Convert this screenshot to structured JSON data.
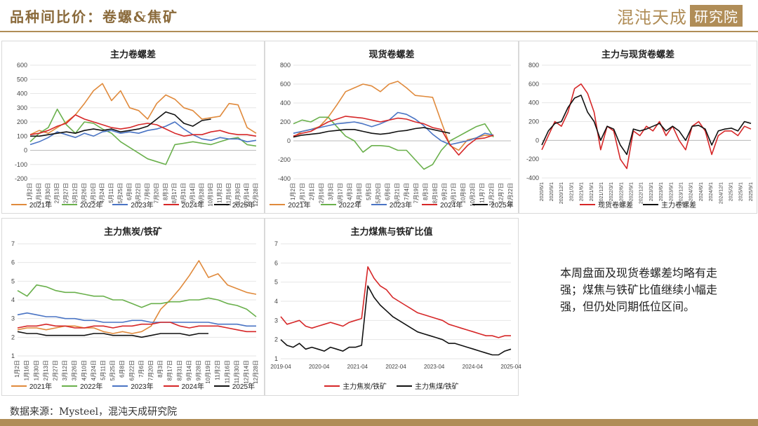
{
  "header": {
    "title": "品种间比价：卷螺&焦矿",
    "logo_text": "混沌天成",
    "logo_box": "研究院"
  },
  "note": "本周盘面及现货卷螺差均略有走强；煤焦与铁矿比值继续小幅走强，但仍处同期低位区间。",
  "source": "数据来源：Mysteel，混沌天成研究院",
  "colors": {
    "brand": "#b08d57",
    "y2021": "#e08a3c",
    "y2022": "#6ab04c",
    "y2023": "#4a74c4",
    "y2024": "#d62728",
    "y2025": "#111111"
  },
  "chart_data": [
    {
      "id": "c1",
      "type": "line",
      "title": "主力卷螺差",
      "y_ticks": [
        600,
        500,
        400,
        300,
        200,
        100,
        0,
        -100,
        -200
      ],
      "ylim": [
        -200,
        600
      ],
      "x_labels": [
        "1月2日",
        "1月16日",
        "1月30日",
        "2月13日",
        "2月27日",
        "3月12日",
        "3月26日",
        "4月10日",
        "4月24日",
        "5月11日",
        "5月25日",
        "6月8日",
        "6月22日",
        "7月6日",
        "7月20日",
        "8月3日",
        "8月17日",
        "8月31日",
        "9月14日",
        "9月28日",
        "10月19日",
        "11月2日",
        "11月16日",
        "11月30日",
        "12月14日",
        "12月28日"
      ],
      "series": [
        {
          "name": "2021年",
          "color": "#e08a3c",
          "values": [
            110,
            140,
            120,
            160,
            200,
            250,
            330,
            420,
            470,
            350,
            420,
            300,
            280,
            220,
            330,
            390,
            360,
            300,
            280,
            220,
            230,
            240,
            330,
            320,
            160,
            120
          ]
        },
        {
          "name": "2022年",
          "color": "#6ab04c",
          "values": [
            60,
            120,
            160,
            290,
            180,
            120,
            200,
            190,
            150,
            120,
            60,
            20,
            -20,
            -60,
            -80,
            -100,
            40,
            50,
            60,
            50,
            40,
            60,
            80,
            90,
            40,
            30
          ]
        },
        {
          "name": "2023年",
          "color": "#4a74c4",
          "values": [
            40,
            60,
            90,
            130,
            110,
            90,
            120,
            100,
            130,
            140,
            120,
            130,
            120,
            140,
            150,
            170,
            200,
            150,
            110,
            80,
            70,
            90,
            80,
            80,
            60,
            70
          ]
        },
        {
          "name": "2024年",
          "color": "#d62728",
          "values": [
            110,
            120,
            140,
            170,
            190,
            250,
            220,
            200,
            180,
            160,
            150,
            160,
            180,
            190,
            180,
            150,
            120,
            100,
            110,
            110,
            130,
            140,
            120,
            110,
            110,
            100
          ]
        },
        {
          "name": "2025年",
          "color": "#111111",
          "values": [
            100,
            100,
            110,
            120,
            130,
            120,
            140,
            150,
            140,
            150,
            130,
            140,
            150,
            170,
            220,
            270,
            250,
            190,
            170,
            210,
            220
          ]
        }
      ]
    },
    {
      "id": "c2",
      "type": "line",
      "title": "现货卷螺差",
      "y_ticks": [
        800,
        600,
        400,
        200,
        0,
        -200,
        -400
      ],
      "ylim": [
        -400,
        800
      ],
      "x_labels": [
        "1月2日",
        "1月17日",
        "2月1日",
        "2月16日",
        "3月3日",
        "3月17日",
        "4月3日",
        "4月18日",
        "5月5日",
        "5月20日",
        "6月6日",
        "6月21日",
        "7月4日",
        "7月19日",
        "8月3日",
        "8月18日",
        "9月2日",
        "9月17日",
        "10月8日",
        "10月23日",
        "11月7日",
        "11月22日",
        "12月7日",
        "12月22日"
      ],
      "series": [
        {
          "name": "2021年",
          "color": "#e08a3c",
          "values": [
            40,
            100,
            120,
            150,
            250,
            380,
            520,
            560,
            600,
            580,
            520,
            600,
            630,
            560,
            480,
            470,
            460,
            200,
            -50,
            -100,
            10,
            30,
            60,
            50
          ]
        },
        {
          "name": "2022年",
          "color": "#6ab04c",
          "values": [
            180,
            220,
            200,
            250,
            250,
            150,
            50,
            0,
            -120,
            -50,
            -50,
            -60,
            -100,
            -100,
            -200,
            -300,
            -250,
            -100,
            0,
            50,
            100,
            150,
            180,
            40
          ]
        },
        {
          "name": "2023年",
          "color": "#4a74c4",
          "values": [
            80,
            100,
            120,
            140,
            160,
            180,
            190,
            200,
            180,
            150,
            180,
            220,
            300,
            280,
            230,
            160,
            70,
            0,
            -40,
            -20,
            0,
            30,
            80,
            60
          ]
        },
        {
          "name": "2024年",
          "color": "#d62728",
          "values": [
            50,
            80,
            100,
            150,
            200,
            230,
            260,
            250,
            240,
            220,
            200,
            220,
            240,
            230,
            200,
            180,
            140,
            120,
            -40,
            -150,
            -50,
            20,
            30,
            60
          ]
        },
        {
          "name": "2025年",
          "color": "#111111",
          "values": [
            40,
            60,
            70,
            80,
            100,
            110,
            120,
            120,
            100,
            80,
            70,
            80,
            100,
            110,
            130,
            140,
            120,
            100,
            80
          ]
        }
      ]
    },
    {
      "id": "c3",
      "type": "line",
      "title": "主力与现货卷螺差",
      "y_ticks": [
        800,
        600,
        400,
        200,
        0,
        -200,
        -400
      ],
      "ylim": [
        -400,
        800
      ],
      "x_labels": [
        "2020/6/1",
        "2020/9/1",
        "2020/12/1",
        "2021/3/1",
        "2021/6/1",
        "2021/9/1",
        "2021/12/1",
        "2022/3/1",
        "2022/6/1",
        "2022/9/1",
        "2022/12/1",
        "2023/3/1",
        "2023/6/1",
        "2023/9/1",
        "2023/12/1",
        "2024/3/1",
        "2024/6/1",
        "2024/9/1",
        "2024/12/1",
        "2025/3/1",
        "2025/6/1",
        "2025/9/1"
      ],
      "series": [
        {
          "name": "现货卷螺差",
          "color": "#d62728",
          "values": [
            -100,
            50,
            200,
            150,
            300,
            550,
            600,
            500,
            300,
            -100,
            150,
            100,
            -200,
            -300,
            100,
            50,
            150,
            100,
            200,
            50,
            150,
            0,
            -100,
            150,
            200,
            100,
            -150,
            50,
            100,
            100,
            50,
            150,
            120
          ]
        },
        {
          "name": "主力卷螺差",
          "color": "#111111",
          "values": [
            -50,
            100,
            180,
            200,
            350,
            450,
            480,
            300,
            200,
            0,
            150,
            120,
            -50,
            -150,
            120,
            100,
            120,
            150,
            180,
            100,
            150,
            100,
            0,
            150,
            160,
            120,
            -50,
            100,
            120,
            130,
            100,
            200,
            180
          ]
        }
      ]
    },
    {
      "id": "c4",
      "type": "line",
      "title": "主力焦炭/铁矿",
      "y_ticks": [
        7,
        6,
        5,
        4,
        3,
        2,
        1
      ],
      "ylim": [
        1,
        7
      ],
      "x_labels": [
        "1月2日",
        "1月16日",
        "1月30日",
        "2月13日",
        "2月27日",
        "3月12日",
        "3月26日",
        "4月10日",
        "4月24日",
        "5月11日",
        "5月25日",
        "6月8日",
        "6月22日",
        "7月6日",
        "7月20日",
        "8月3日",
        "8月17日",
        "8月31日",
        "9月14日",
        "9月28日",
        "10月19日",
        "11月2日",
        "11月16日",
        "11月30日",
        "12月14日",
        "12月28日"
      ],
      "series": [
        {
          "name": "2021年",
          "color": "#e08a3c",
          "values": [
            2.4,
            2.5,
            2.5,
            2.4,
            2.5,
            2.6,
            2.6,
            2.5,
            2.5,
            2.3,
            2.2,
            2.3,
            2.2,
            2.3,
            2.6,
            3.5,
            4.0,
            4.6,
            5.3,
            6.1,
            5.2,
            5.4,
            4.8,
            4.6,
            4.4,
            4.3
          ]
        },
        {
          "name": "2022年",
          "color": "#6ab04c",
          "values": [
            4.5,
            4.2,
            4.8,
            4.7,
            4.5,
            4.4,
            4.4,
            4.3,
            4.2,
            4.2,
            4.0,
            4.0,
            3.8,
            3.6,
            3.8,
            3.8,
            3.9,
            3.9,
            4.0,
            4.0,
            4.1,
            4.0,
            3.8,
            3.7,
            3.5,
            3.1
          ]
        },
        {
          "name": "2023年",
          "color": "#4a74c4",
          "values": [
            3.2,
            3.3,
            3.2,
            3.1,
            3.1,
            3.0,
            3.0,
            2.9,
            2.9,
            2.8,
            2.8,
            2.8,
            2.9,
            2.9,
            2.8,
            2.8,
            2.8,
            2.8,
            2.8,
            2.8,
            2.8,
            2.7,
            2.7,
            2.7,
            2.6,
            2.6
          ]
        },
        {
          "name": "2024年",
          "color": "#d62728",
          "values": [
            2.5,
            2.6,
            2.6,
            2.7,
            2.6,
            2.6,
            2.5,
            2.5,
            2.6,
            2.6,
            2.5,
            2.6,
            2.6,
            2.7,
            2.7,
            2.8,
            2.8,
            2.6,
            2.5,
            2.6,
            2.6,
            2.6,
            2.5,
            2.4,
            2.3,
            2.3
          ]
        },
        {
          "name": "2025年",
          "color": "#111111",
          "values": [
            2.3,
            2.2,
            2.2,
            2.1,
            2.1,
            2.1,
            2.1,
            2.1,
            2.2,
            2.2,
            2.1,
            2.1,
            2.1,
            2.0,
            2.1,
            2.2,
            2.2,
            2.2,
            2.1,
            2.2,
            2.2
          ]
        }
      ]
    },
    {
      "id": "c5",
      "type": "line",
      "title": "主力煤焦与铁矿比值",
      "y_ticks": [
        7,
        6,
        5,
        4,
        3,
        2,
        1
      ],
      "ylim": [
        1,
        7
      ],
      "x_labels": [
        "2019-04",
        "2020-04",
        "2021-04",
        "2022-04",
        "2023-04",
        "2024-04",
        "2025-04"
      ],
      "series": [
        {
          "name": "主力焦炭/铁矿",
          "color": "#d62728",
          "values": [
            3.2,
            2.8,
            2.9,
            3.0,
            2.7,
            2.6,
            2.7,
            2.8,
            2.9,
            2.8,
            2.7,
            2.9,
            3.0,
            3.1,
            5.8,
            5.2,
            4.8,
            4.6,
            4.2,
            4.0,
            3.8,
            3.6,
            3.4,
            3.3,
            3.2,
            3.1,
            3.0,
            2.8,
            2.7,
            2.6,
            2.5,
            2.4,
            2.3,
            2.2,
            2.2,
            2.1,
            2.2,
            2.2
          ]
        },
        {
          "name": "主力焦煤/铁矿",
          "color": "#111111",
          "values": [
            2.0,
            1.7,
            1.6,
            1.8,
            1.5,
            1.6,
            1.5,
            1.4,
            1.6,
            1.5,
            1.4,
            1.6,
            1.6,
            1.7,
            4.8,
            4.2,
            3.8,
            3.5,
            3.2,
            3.0,
            2.8,
            2.6,
            2.4,
            2.3,
            2.2,
            2.1,
            2.0,
            1.8,
            1.8,
            1.7,
            1.6,
            1.5,
            1.4,
            1.3,
            1.2,
            1.2,
            1.4,
            1.5
          ]
        }
      ]
    }
  ]
}
